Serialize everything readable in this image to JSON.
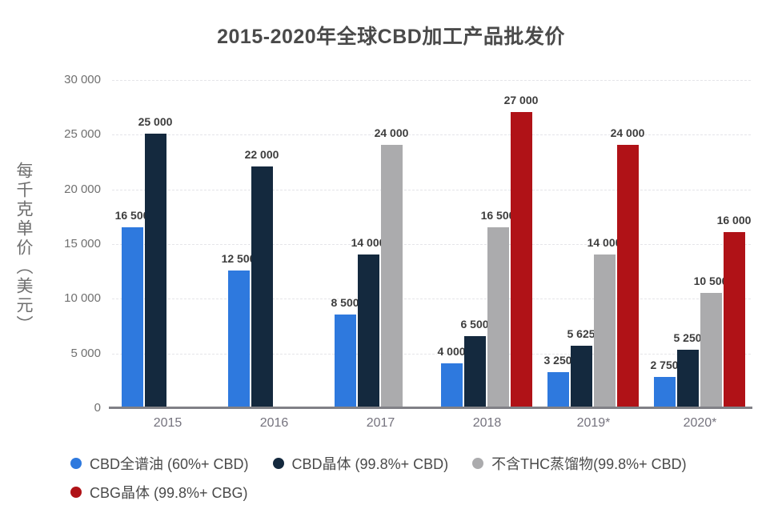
{
  "title": "2015-2020年全球CBD加工产品批发价",
  "chart_data": {
    "type": "bar",
    "title": "2015-2020年全球CBD加工产品批发价",
    "ylabel": "每千克单价（美元）",
    "xlabel": "",
    "categories": [
      "2015",
      "2016",
      "2017",
      "2018",
      "2019*",
      "2020*"
    ],
    "series": [
      {
        "name": "CBD全谱油 (60%+ CBD)",
        "color": "#2e79de",
        "values": [
          16500,
          12500,
          8500,
          4000,
          3250,
          2750
        ]
      },
      {
        "name": "CBD晶体 (99.8%+ CBD)",
        "color": "#14293e",
        "values": [
          25000,
          22000,
          14000,
          6500,
          5625,
          5250
        ]
      },
      {
        "name": "不含THC蒸馏物(99.8%+ CBD)",
        "color": "#ababad",
        "values": [
          null,
          null,
          24000,
          16500,
          14000,
          10500
        ]
      },
      {
        "name": "CBG晶体 (99.8%+ CBG)",
        "color": "#b01217",
        "values": [
          null,
          null,
          null,
          27000,
          24000,
          16000
        ]
      }
    ],
    "ylim": [
      0,
      30000
    ],
    "ytick_values": [
      0,
      5000,
      10000,
      15000,
      20000,
      25000,
      30000
    ],
    "ytick_labels": [
      "0",
      "5 000",
      "10 000",
      "15 000",
      "20 000",
      "25 000",
      "30 000"
    ],
    "grid": true,
    "value_labels": true,
    "number_format": "space-thousands",
    "legend_position": "bottom"
  },
  "colors": {
    "grid": "#e5e5e9",
    "axis": "#808086",
    "tick_text": "#707070",
    "value_text": "#3d3d3d",
    "category_text": "#75737e",
    "legend_text": "#4a4a4a",
    "title_text": "#4a4a4a",
    "ylabel_text": "#6e6e6e"
  }
}
